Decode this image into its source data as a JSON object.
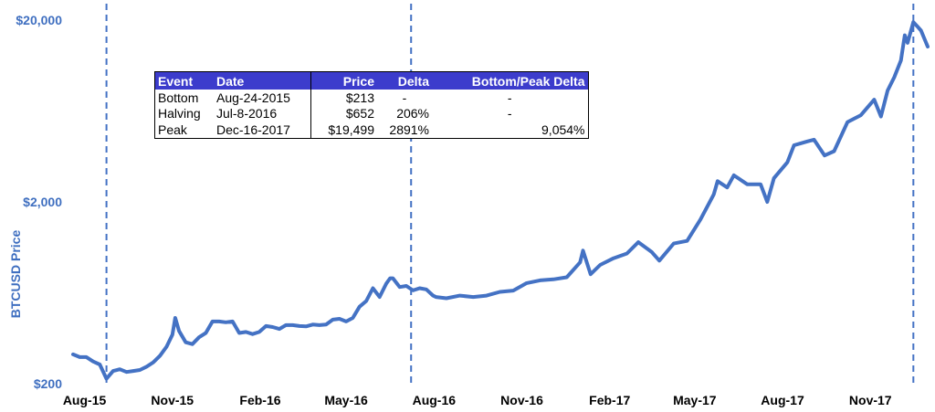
{
  "chart_data": {
    "type": "line",
    "ylabel": "BTCUSD Price",
    "yscale": "log",
    "ylim": [
      200,
      20000
    ],
    "y_ticks": [
      "$20,000",
      "$2,000",
      "$200"
    ],
    "x_ticks": [
      "Aug-15",
      "Nov-15",
      "Feb-16",
      "May-16",
      "Aug-16",
      "Nov-16",
      "Feb-17",
      "May-17",
      "Aug-17",
      "Nov-17"
    ],
    "xlim": [
      "2015-07-20",
      "2017-12-31"
    ],
    "vlines": [
      "2015-08-24",
      "2016-07-08",
      "2017-12-16"
    ],
    "line_color": "#4472c4",
    "series": [
      {
        "x": [
          "2015-07-20",
          "2015-07-27",
          "2015-08-03",
          "2015-08-10",
          "2015-08-17",
          "2015-08-24",
          "2015-08-31",
          "2015-09-07",
          "2015-09-14",
          "2015-09-21",
          "2015-09-28",
          "2015-10-05",
          "2015-10-12",
          "2015-10-19",
          "2015-10-26",
          "2015-11-01",
          "2015-11-04",
          "2015-11-08",
          "2015-11-15",
          "2015-11-22",
          "2015-11-29",
          "2015-12-06",
          "2015-12-13",
          "2015-12-20",
          "2015-12-27",
          "2016-01-03",
          "2016-01-10",
          "2016-01-17",
          "2016-01-24",
          "2016-01-31",
          "2016-02-07",
          "2016-02-14",
          "2016-02-21",
          "2016-02-28",
          "2016-03-06",
          "2016-03-13",
          "2016-03-20",
          "2016-03-27",
          "2016-04-03",
          "2016-04-10",
          "2016-04-17",
          "2016-04-24",
          "2016-05-01",
          "2016-05-08",
          "2016-05-15",
          "2016-05-22",
          "2016-05-29",
          "2016-06-05",
          "2016-06-12",
          "2016-06-16",
          "2016-06-19",
          "2016-06-26",
          "2016-07-03",
          "2016-07-10",
          "2016-07-17",
          "2016-07-24",
          "2016-07-31",
          "2016-08-03",
          "2016-08-14",
          "2016-08-28",
          "2016-09-11",
          "2016-09-25",
          "2016-10-09",
          "2016-10-23",
          "2016-11-06",
          "2016-11-20",
          "2016-12-04",
          "2016-12-18",
          "2017-01-01",
          "2017-01-04",
          "2017-01-12",
          "2017-01-22",
          "2017-02-05",
          "2017-02-19",
          "2017-03-03",
          "2017-03-17",
          "2017-03-25",
          "2017-04-09",
          "2017-04-23",
          "2017-05-07",
          "2017-05-21",
          "2017-05-25",
          "2017-06-04",
          "2017-06-11",
          "2017-06-25",
          "2017-07-09",
          "2017-07-16",
          "2017-07-23",
          "2017-08-06",
          "2017-08-13",
          "2017-08-20",
          "2017-08-27",
          "2017-09-03",
          "2017-09-14",
          "2017-09-24",
          "2017-10-08",
          "2017-10-22",
          "2017-11-05",
          "2017-11-12",
          "2017-11-19",
          "2017-11-26",
          "2017-12-03",
          "2017-12-07",
          "2017-12-10",
          "2017-12-16",
          "2017-12-20",
          "2017-12-24",
          "2017-12-31"
        ],
        "values": [
          290,
          280,
          280,
          265,
          255,
          213,
          235,
          240,
          232,
          235,
          238,
          248,
          262,
          285,
          320,
          372,
          460,
          390,
          338,
          330,
          360,
          380,
          440,
          440,
          435,
          440,
          380,
          385,
          375,
          385,
          415,
          410,
          400,
          420,
          420,
          415,
          413,
          423,
          420,
          423,
          450,
          455,
          440,
          460,
          530,
          570,
          670,
          600,
          710,
          760,
          760,
          680,
          690,
          652,
          670,
          660,
          610,
          600,
          590,
          610,
          600,
          610,
          640,
          650,
          715,
          740,
          750,
          770,
          930,
          1080,
          800,
          900,
          980,
          1040,
          1200,
          1060,
          950,
          1180,
          1220,
          1600,
          2200,
          2600,
          2400,
          2800,
          2500,
          2500,
          2000,
          2700,
          3300,
          4100,
          4200,
          4300,
          4400,
          3600,
          3800,
          5500,
          6000,
          7300,
          5900,
          8200,
          9700,
          12000,
          16500,
          15000,
          19499,
          18500,
          17500,
          14300
        ]
      }
    ]
  },
  "table": {
    "headers": [
      "Event",
      "Date",
      "Price",
      "Delta",
      "Bottom/Peak Delta"
    ],
    "rows": [
      [
        "Bottom",
        "Aug-24-2015",
        "$213",
        "-",
        "-"
      ],
      [
        "Halving",
        "Jul-8-2016",
        "$652",
        "206%",
        "-"
      ],
      [
        "Peak",
        "Dec-16-2017",
        "$19,499",
        "2891%",
        "9,054%"
      ]
    ]
  }
}
